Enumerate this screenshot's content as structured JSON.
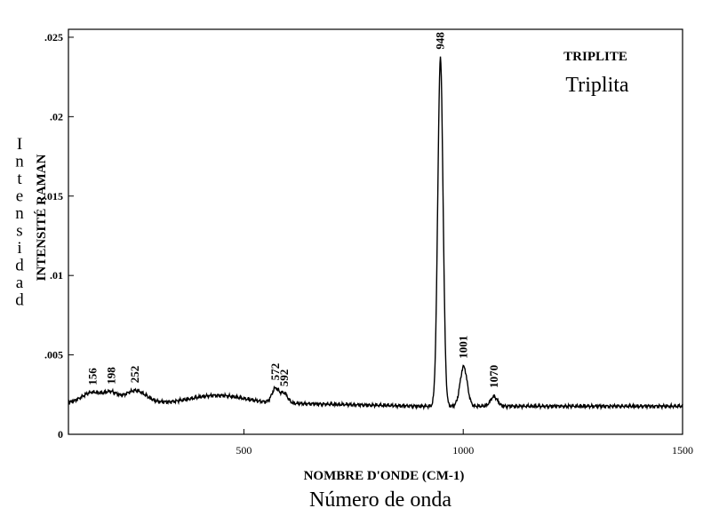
{
  "chart_data": {
    "type": "line",
    "title": "TRIPLITE",
    "subtitle": "Triplita",
    "xlabel": "NOMBRE D'ONDE (CM-1)",
    "xlabel_secondary": "Número de onda",
    "ylabel": "INTENSITÉ RAMAN",
    "ylabel_secondary": "Intensidad",
    "xlim": [
      100,
      1500
    ],
    "ylim": [
      0,
      0.0255
    ],
    "x_ticks": [
      500,
      1000,
      1500
    ],
    "x_tick_labels": [
      "500",
      "1000",
      "1500"
    ],
    "y_ticks": [
      0,
      0.005,
      0.01,
      0.015,
      0.02,
      0.025
    ],
    "y_tick_labels": [
      "0",
      ".005",
      ".01",
      ".015",
      ".02",
      ".025"
    ],
    "grid": false,
    "baseline": 0.00195,
    "peaks": [
      {
        "x": 156,
        "height": 0.0007,
        "width": 25,
        "label": "156"
      },
      {
        "x": 198,
        "height": 0.0005,
        "width": 14,
        "label": "198"
      },
      {
        "x": 252,
        "height": 0.0008,
        "width": 25,
        "label": "252"
      },
      {
        "x": 440,
        "height": 0.0005,
        "width": 60,
        "label": ""
      },
      {
        "x": 572,
        "height": 0.0009,
        "width": 8,
        "label": "572"
      },
      {
        "x": 592,
        "height": 0.0006,
        "width": 8,
        "label": "592"
      },
      {
        "x": 948,
        "height": 0.0219,
        "width": 6,
        "label": "948"
      },
      {
        "x": 1001,
        "height": 0.0025,
        "width": 8,
        "label": "1001"
      },
      {
        "x": 1070,
        "height": 0.0006,
        "width": 8,
        "label": "1070"
      }
    ]
  }
}
